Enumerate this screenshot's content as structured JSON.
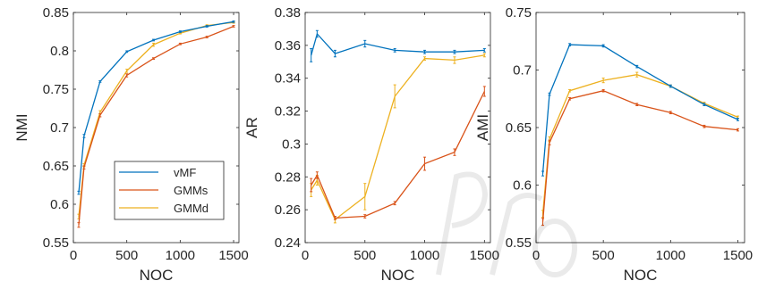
{
  "colors": {
    "vMF": "#0072BD",
    "GMMs": "#D95319",
    "GMMd": "#EDB120",
    "axis": "#262626"
  },
  "chart_data": [
    {
      "type": "line",
      "title": "",
      "xlabel": "NOC",
      "ylabel": "NMI",
      "xlim": [
        0,
        1550
      ],
      "ylim": [
        0.55,
        0.85
      ],
      "xticks": [
        0,
        500,
        1000,
        1500
      ],
      "xtick_labels": [
        "0",
        "500",
        "1000",
        "1500"
      ],
      "yticks": [
        0.55,
        0.6,
        0.65,
        0.7,
        0.75,
        0.8,
        0.85
      ],
      "ytick_labels": [
        "0.55",
        "0.6",
        "0.65",
        "0.7",
        "0.75",
        "0.8",
        "0.85"
      ],
      "x": [
        50,
        100,
        250,
        500,
        750,
        1000,
        1250,
        1500
      ],
      "legend": {
        "position": "bottom-right",
        "entries": [
          "vMF",
          "GMMs",
          "GMMd"
        ]
      },
      "series": [
        {
          "name": "vMF",
          "values": [
            0.615,
            0.689,
            0.76,
            0.799,
            0.814,
            0.825,
            0.832,
            0.838
          ],
          "err": [
            0.002,
            0.002,
            0.001,
            0.001,
            0.001,
            0.001,
            0.001,
            0.001
          ]
        },
        {
          "name": "GMMs",
          "values": [
            0.573,
            0.648,
            0.716,
            0.768,
            0.79,
            0.809,
            0.818,
            0.832
          ],
          "err": [
            0.003,
            0.002,
            0.002,
            0.002,
            0.001,
            0.001,
            0.001,
            0.001
          ]
        },
        {
          "name": "GMMd",
          "values": [
            0.584,
            0.651,
            0.72,
            0.774,
            0.808,
            0.823,
            0.833,
            0.837
          ],
          "err": [
            0.003,
            0.002,
            0.002,
            0.002,
            0.002,
            0.001,
            0.001,
            0.001
          ]
        }
      ]
    },
    {
      "type": "line",
      "title": "",
      "xlabel": "NOC",
      "ylabel": "AR",
      "xlim": [
        0,
        1550
      ],
      "ylim": [
        0.24,
        0.38
      ],
      "xticks": [
        0,
        500,
        1000,
        1500
      ],
      "xtick_labels": [
        "0",
        "500",
        "1000",
        "1500"
      ],
      "yticks": [
        0.24,
        0.26,
        0.28,
        0.3,
        0.32,
        0.34,
        0.36,
        0.38
      ],
      "ytick_labels": [
        "0.24",
        "0.26",
        "0.28",
        "0.3",
        "0.32",
        "0.34",
        "0.36",
        "0.38"
      ],
      "x": [
        50,
        100,
        250,
        500,
        750,
        1000,
        1250,
        1500
      ],
      "series": [
        {
          "name": "vMF",
          "values": [
            0.354,
            0.367,
            0.355,
            0.361,
            0.357,
            0.356,
            0.356,
            0.357
          ],
          "err": [
            0.004,
            0.002,
            0.002,
            0.002,
            0.001,
            0.001,
            0.001,
            0.001
          ]
        },
        {
          "name": "GMMs",
          "values": [
            0.275,
            0.281,
            0.255,
            0.256,
            0.264,
            0.288,
            0.295,
            0.332
          ],
          "err": [
            0.004,
            0.002,
            0.001,
            0.001,
            0.001,
            0.004,
            0.002,
            0.003
          ]
        },
        {
          "name": "GMMd",
          "values": [
            0.272,
            0.278,
            0.254,
            0.268,
            0.329,
            0.352,
            0.351,
            0.354
          ],
          "err": [
            0.004,
            0.003,
            0.002,
            0.008,
            0.007,
            0.001,
            0.002,
            0.001
          ]
        }
      ]
    },
    {
      "type": "line",
      "title": "",
      "xlabel": "NOC",
      "ylabel": "AMI",
      "xlim": [
        0,
        1550
      ],
      "ylim": [
        0.55,
        0.75
      ],
      "xticks": [
        0,
        500,
        1000,
        1500
      ],
      "xtick_labels": [
        "0",
        "500",
        "1000",
        "1500"
      ],
      "yticks": [
        0.55,
        0.6,
        0.65,
        0.7,
        0.75
      ],
      "ytick_labels": [
        "0.55",
        "0.6",
        "0.65",
        "0.7",
        "0.75"
      ],
      "x": [
        50,
        100,
        250,
        500,
        750,
        1000,
        1250,
        1500
      ],
      "series": [
        {
          "name": "vMF",
          "values": [
            0.61,
            0.679,
            0.722,
            0.721,
            0.703,
            0.686,
            0.67,
            0.657
          ],
          "err": [
            0.002,
            0.001,
            0.001,
            0.001,
            0.001,
            0.001,
            0.001,
            0.001
          ]
        },
        {
          "name": "GMMs",
          "values": [
            0.568,
            0.637,
            0.675,
            0.682,
            0.67,
            0.663,
            0.651,
            0.648
          ],
          "err": [
            0.003,
            0.002,
            0.001,
            0.001,
            0.001,
            0.001,
            0.001,
            0.001
          ]
        },
        {
          "name": "GMMd",
          "values": [
            0.575,
            0.64,
            0.682,
            0.691,
            0.696,
            0.686,
            0.671,
            0.659
          ],
          "err": [
            0.003,
            0.002,
            0.001,
            0.002,
            0.002,
            0.001,
            0.001,
            0.001
          ]
        }
      ]
    }
  ]
}
